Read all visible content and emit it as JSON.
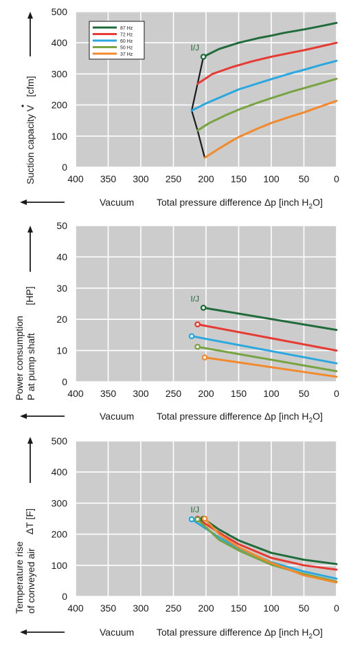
{
  "colors": {
    "plot_bg": "#cccccc",
    "grid": "#ffffff",
    "axis": "#1a1a1a",
    "series": {
      "87 Hz": "#1f6b3a",
      "72 Hz": "#e63a32",
      "60 Hz": "#29a8e0",
      "50 Hz": "#78a341",
      "37 Hz": "#f28a2c"
    }
  },
  "common": {
    "x_ticks": [
      "400",
      "350",
      "300",
      "250",
      "200",
      "150",
      "100",
      "50",
      "0"
    ],
    "vacuum_label": "Vacuum",
    "x_title_prefix": "Total pressure difference ",
    "x_title_delta": "Δp",
    "x_title_unit_open": " [inch H",
    "x_title_sub": "2",
    "x_title_unit_close": "O]",
    "point_label": "I/J"
  },
  "chart_data": [
    {
      "type": "line",
      "xlim": [
        400,
        0
      ],
      "ylim": [
        0,
        500
      ],
      "yticks": [
        "0",
        "100",
        "200",
        "300",
        "400",
        "500"
      ],
      "ylabel": "Suction capacity",
      "ylabel_symbol": "V",
      "ylabel_unit": "[cfm]",
      "legend": [
        "87 Hz",
        "72 Hz",
        "60 Hz",
        "50 Hz",
        "37 Hz"
      ],
      "legend_position": "top-left",
      "series": [
        {
          "name": "87 Hz",
          "x": [
            204,
            180,
            150,
            120,
            100,
            80,
            50,
            25,
            0
          ],
          "y": [
            355,
            380,
            400,
            415,
            423,
            432,
            443,
            453,
            464
          ]
        },
        {
          "name": "72 Hz",
          "x": [
            213,
            190,
            160,
            130,
            100,
            70,
            50,
            25,
            0
          ],
          "y": [
            268,
            300,
            322,
            340,
            355,
            368,
            376,
            388,
            400
          ]
        },
        {
          "name": "60 Hz",
          "x": [
            222,
            200,
            170,
            150,
            120,
            100,
            70,
            50,
            25,
            0
          ],
          "y": [
            182,
            205,
            232,
            250,
            270,
            283,
            302,
            313,
            328,
            342
          ]
        },
        {
          "name": "50 Hz",
          "x": [
            213,
            195,
            170,
            150,
            120,
            100,
            70,
            50,
            25,
            0
          ],
          "y": [
            118,
            142,
            167,
            185,
            208,
            222,
            242,
            254,
            269,
            284
          ]
        },
        {
          "name": "37 Hz",
          "x": [
            202,
            180,
            160,
            150,
            120,
            100,
            70,
            50,
            25,
            0
          ],
          "y": [
            30,
            60,
            85,
            97,
            125,
            142,
            163,
            176,
            195,
            213
          ]
        }
      ],
      "boundary": {
        "x": [
          204,
          213,
          222,
          213,
          202
        ],
        "y": [
          355,
          268,
          182,
          118,
          30
        ]
      },
      "markers": [
        {
          "x": 204,
          "y": 355,
          "series": "87 Hz"
        }
      ]
    },
    {
      "type": "line",
      "xlim": [
        400,
        0
      ],
      "ylim": [
        0,
        50
      ],
      "yticks": [
        "0",
        "10",
        "20",
        "30",
        "40",
        "50"
      ],
      "ylabel_line1": "Power consumption",
      "ylabel_line2": "P at pump shaft",
      "ylabel_unit": "[HP]",
      "series": [
        {
          "name": "87 Hz",
          "x": [
            204,
            0
          ],
          "y": [
            23.7,
            16.6
          ]
        },
        {
          "name": "72 Hz",
          "x": [
            213,
            0
          ],
          "y": [
            18.4,
            10.0
          ]
        },
        {
          "name": "60 Hz",
          "x": [
            222,
            0
          ],
          "y": [
            14.6,
            5.9
          ]
        },
        {
          "name": "50 Hz",
          "x": [
            213,
            0
          ],
          "y": [
            11.2,
            3.4
          ]
        },
        {
          "name": "37 Hz",
          "x": [
            202,
            0
          ],
          "y": [
            7.8,
            1.6
          ]
        }
      ],
      "markers": [
        {
          "x": 204,
          "y": 23.7,
          "series": "87 Hz"
        },
        {
          "x": 213,
          "y": 18.4,
          "series": "72 Hz"
        },
        {
          "x": 222,
          "y": 14.6,
          "series": "60 Hz"
        },
        {
          "x": 213,
          "y": 11.2,
          "series": "50 Hz"
        },
        {
          "x": 202,
          "y": 7.8,
          "series": "37 Hz"
        }
      ]
    },
    {
      "type": "line",
      "xlim": [
        400,
        0
      ],
      "ylim": [
        0,
        500
      ],
      "yticks": [
        "0",
        "100",
        "200",
        "300",
        "400",
        "500"
      ],
      "ylabel_line1": "Temperature rise",
      "ylabel_line2": "of conveyed air",
      "ylabel_symbol": "ΔT",
      "ylabel_unit": "[F]",
      "series": [
        {
          "name": "87 Hz",
          "x": [
            204,
            180,
            150,
            100,
            50,
            0
          ],
          "y": [
            250,
            215,
            180,
            140,
            118,
            104
          ]
        },
        {
          "name": "72 Hz",
          "x": [
            213,
            180,
            150,
            100,
            50,
            0
          ],
          "y": [
            250,
            205,
            168,
            124,
            100,
            86
          ]
        },
        {
          "name": "60 Hz",
          "x": [
            222,
            180,
            150,
            100,
            50,
            0
          ],
          "y": [
            248,
            190,
            155,
            110,
            80,
            57
          ]
        },
        {
          "name": "50 Hz",
          "x": [
            213,
            180,
            150,
            100,
            50,
            0
          ],
          "y": [
            248,
            182,
            148,
            102,
            72,
            48
          ]
        },
        {
          "name": "37 Hz",
          "x": [
            202,
            180,
            150,
            100,
            50,
            0
          ],
          "y": [
            250,
            200,
            158,
            108,
            68,
            45
          ]
        }
      ],
      "markers": [
        {
          "x": 204,
          "y": 250,
          "series": "87 Hz"
        },
        {
          "x": 213,
          "y": 250,
          "series": "72 Hz"
        },
        {
          "x": 222,
          "y": 248,
          "series": "60 Hz"
        },
        {
          "x": 213,
          "y": 248,
          "series": "50 Hz"
        },
        {
          "x": 202,
          "y": 250,
          "series": "37 Hz"
        }
      ]
    }
  ]
}
